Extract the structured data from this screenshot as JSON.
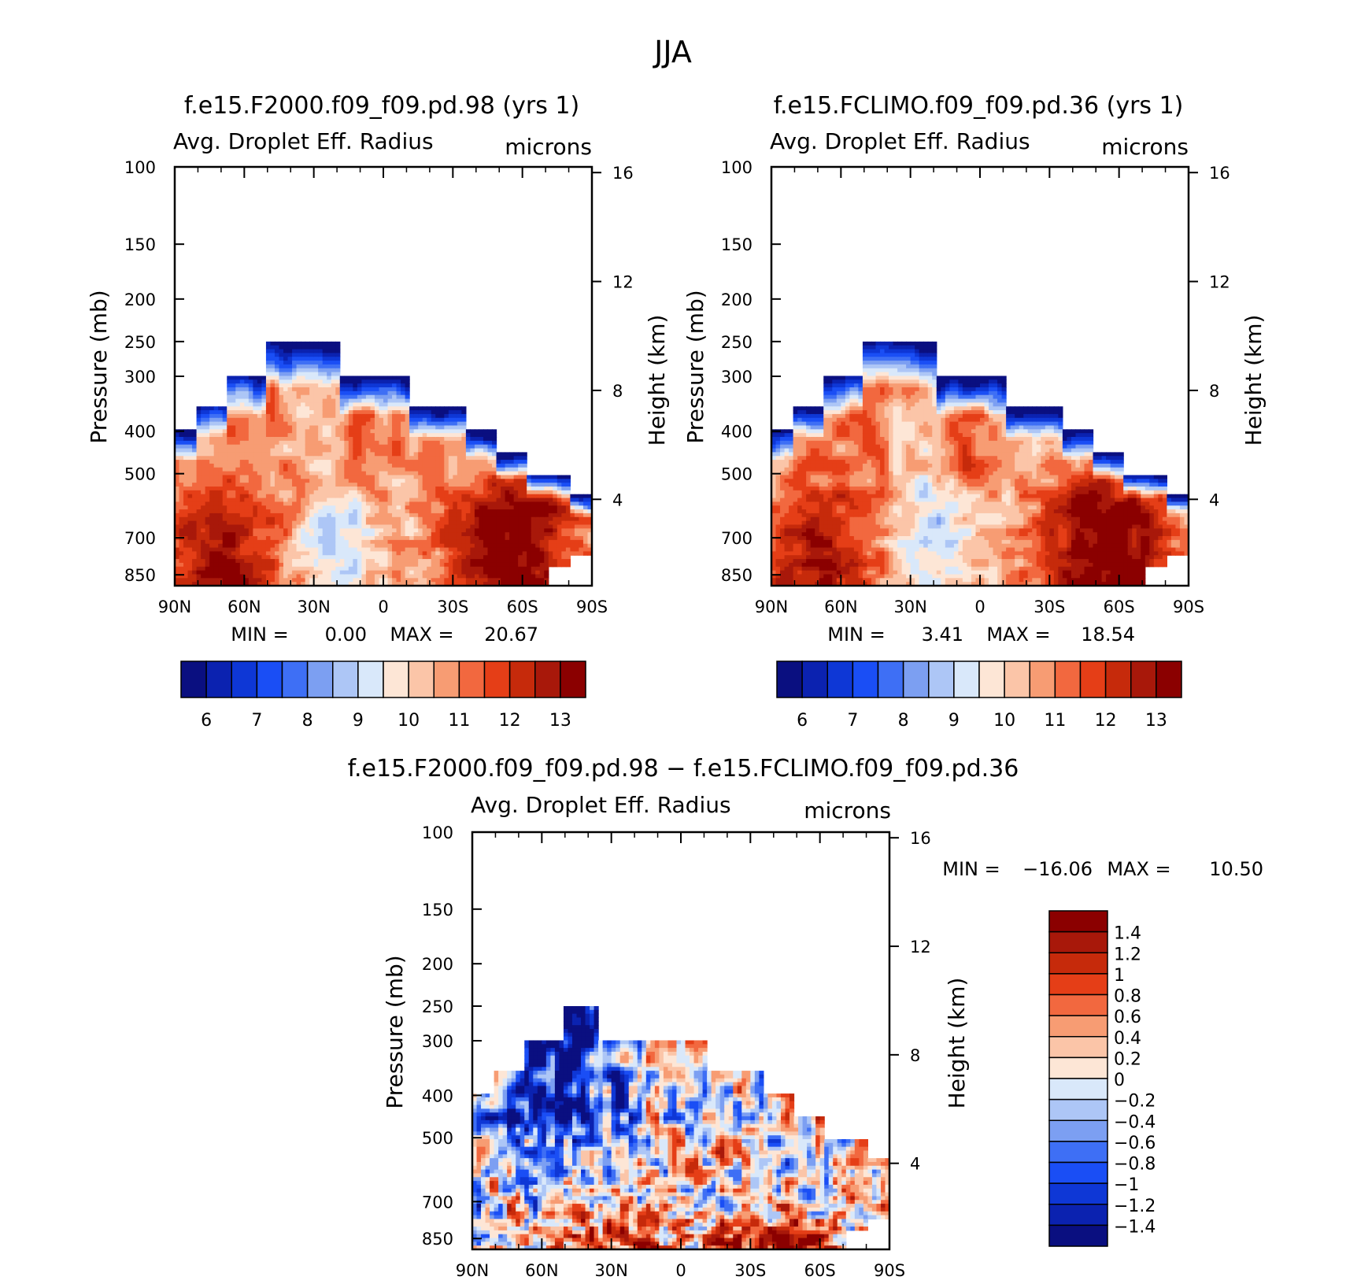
{
  "figure_title": "JJA",
  "colors": {
    "abs_palette": [
      "#0a0f80",
      "#0b22b0",
      "#0e37d6",
      "#1a4ef5",
      "#3e6ff5",
      "#7c9ff2",
      "#adc6f6",
      "#d9e8fa",
      "#fde6d6",
      "#fbc5a8",
      "#f79c73",
      "#f2683f",
      "#e53e17",
      "#c62a0b",
      "#a8180a",
      "#8b0000"
    ],
    "diff_palette": [
      "#0a0f80",
      "#0b22b0",
      "#0e37d6",
      "#1a4ef5",
      "#3e6ff5",
      "#7c9ff2",
      "#adc6f6",
      "#d9e8fa",
      "#fde6d6",
      "#fbc5a8",
      "#f79c73",
      "#f2683f",
      "#e53e17",
      "#c62a0b",
      "#a8180a",
      "#8b0000"
    ]
  },
  "panels": [
    {
      "id": "p1",
      "title": "f.e15.F2000.f09_f09.pd.98 (yrs 1)",
      "left_label": "Avg. Droplet Eff. Radius",
      "units": "microns",
      "ylabel": "Pressure (mb)",
      "y2label": "Height (km)",
      "stats": {
        "min_label": "MIN =",
        "min": "0.00",
        "max_label": "MAX =",
        "max": "20.67"
      },
      "colorbar_labels": [
        "6",
        "7",
        "8",
        "9",
        "10",
        "11",
        "12",
        "13"
      ]
    },
    {
      "id": "p2",
      "title": "f.e15.FCLIMO.f09_f09.pd.36 (yrs 1)",
      "left_label": "Avg. Droplet Eff. Radius",
      "units": "microns",
      "ylabel": "Pressure (mb)",
      "y2label": "Height (km)",
      "stats": {
        "min_label": "MIN =",
        "min": "3.41",
        "max_label": "MAX =",
        "max": "18.54"
      },
      "colorbar_labels": [
        "6",
        "7",
        "8",
        "9",
        "10",
        "11",
        "12",
        "13"
      ]
    },
    {
      "id": "p3",
      "title": "f.e15.F2000.f09_f09.pd.98 − f.e15.FCLIMO.f09_f09.pd.36",
      "left_label": "Avg. Droplet Eff. Radius",
      "units": "microns",
      "ylabel": "Pressure (mb)",
      "y2label": "Height (km)",
      "stats": {
        "min_label": "MIN =",
        "min": "−16.06",
        "max_label": "MAX =",
        "max": "10.50"
      },
      "colorbar_labels": [
        "1.4",
        "1.2",
        "1",
        "0.8",
        "0.6",
        "0.4",
        "0.2",
        "0",
        "−0.2",
        "−0.4",
        "−0.6",
        "−0.8",
        "−1",
        "−1.2",
        "−1.4"
      ]
    }
  ],
  "chart_data": [
    {
      "type": "heatmap",
      "title": "f.e15.F2000.f09_f09.pd.98 (yrs 1)",
      "variable": "Avg. Droplet Eff. Radius",
      "units": "microns",
      "x_ticks": [
        "90N",
        "60N",
        "30N",
        "0",
        "30S",
        "60S",
        "90S"
      ],
      "y_ticks": [
        "100",
        "150",
        "200",
        "250",
        "300",
        "400",
        "500",
        "700",
        "850"
      ],
      "y_scale": "log-pressure",
      "ylim": [
        100,
        900
      ],
      "y2_ticks": [
        "16",
        "12",
        "8",
        "4"
      ],
      "min": 0.0,
      "max": 20.67,
      "contour_levels": [
        6,
        6.5,
        7,
        7.5,
        8,
        8.5,
        9,
        9.5,
        10,
        10.5,
        11,
        11.5,
        12,
        12.5,
        13
      ]
    },
    {
      "type": "heatmap",
      "title": "f.e15.FCLIMO.f09_f09.pd.36 (yrs 1)",
      "variable": "Avg. Droplet Eff. Radius",
      "units": "microns",
      "x_ticks": [
        "90N",
        "60N",
        "30N",
        "0",
        "30S",
        "60S",
        "90S"
      ],
      "y_ticks": [
        "100",
        "150",
        "200",
        "250",
        "300",
        "400",
        "500",
        "700",
        "850"
      ],
      "y_scale": "log-pressure",
      "ylim": [
        100,
        900
      ],
      "y2_ticks": [
        "16",
        "12",
        "8",
        "4"
      ],
      "min": 3.41,
      "max": 18.54,
      "contour_levels": [
        6,
        6.5,
        7,
        7.5,
        8,
        8.5,
        9,
        9.5,
        10,
        10.5,
        11,
        11.5,
        12,
        12.5,
        13
      ]
    },
    {
      "type": "heatmap",
      "title": "f.e15.F2000.f09_f09.pd.98 − f.e15.FCLIMO.f09_f09.pd.36",
      "variable": "Avg. Droplet Eff. Radius",
      "units": "microns",
      "x_ticks": [
        "90N",
        "60N",
        "30N",
        "0",
        "30S",
        "60S",
        "90S"
      ],
      "y_ticks": [
        "100",
        "150",
        "200",
        "250",
        "300",
        "400",
        "500",
        "700",
        "850"
      ],
      "y_scale": "log-pressure",
      "ylim": [
        100,
        900
      ],
      "y2_ticks": [
        "16",
        "12",
        "8",
        "4"
      ],
      "min": -16.06,
      "max": 10.5,
      "contour_levels": [
        -1.4,
        -1.2,
        -1,
        -0.8,
        -0.6,
        -0.4,
        -0.2,
        0,
        0.2,
        0.4,
        0.6,
        0.8,
        1,
        1.2,
        1.4
      ]
    }
  ]
}
